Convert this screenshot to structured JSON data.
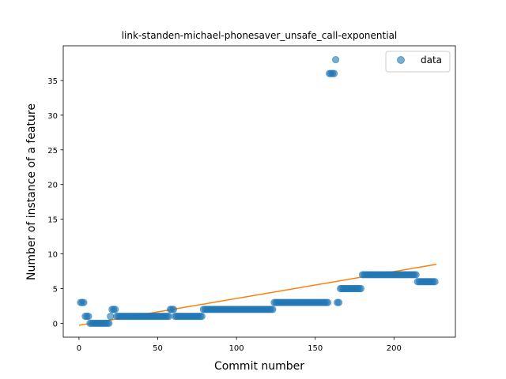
{
  "chart_data": {
    "type": "scatter",
    "title": "link-standen-michael-phonesaver_unsafe_call-exponential",
    "xlabel": "Commit number",
    "ylabel": "Number of instance of a feature",
    "xlim": [
      -10,
      239
    ],
    "ylim": [
      -2,
      40
    ],
    "xticks": [
      0,
      50,
      100,
      150,
      200
    ],
    "yticks": [
      0,
      5,
      10,
      15,
      20,
      25,
      30,
      35
    ],
    "grid": false,
    "legend": {
      "position": "top-right",
      "entries": [
        "data"
      ]
    },
    "colors": {
      "data": "#1f77b4",
      "fit": "#ff7f0e"
    },
    "series": [
      {
        "name": "data",
        "kind": "scatter",
        "segments": [
          {
            "x_start": 1,
            "x_end": 3,
            "y": 3
          },
          {
            "x_start": 4,
            "x_end": 6,
            "y": 1
          },
          {
            "x_start": 7,
            "x_end": 19,
            "y": 0
          },
          {
            "x_start": 20,
            "x_end": 20,
            "y": 1
          },
          {
            "x_start": 21,
            "x_end": 23,
            "y": 2
          },
          {
            "x_start": 24,
            "x_end": 57,
            "y": 1
          },
          {
            "x_start": 58,
            "x_end": 60,
            "y": 2
          },
          {
            "x_start": 61,
            "x_end": 78,
            "y": 1
          },
          {
            "x_start": 79,
            "x_end": 123,
            "y": 2
          },
          {
            "x_start": 124,
            "x_end": 158,
            "y": 3
          },
          {
            "x_start": 159,
            "x_end": 162,
            "y": 36
          },
          {
            "x_start": 163,
            "x_end": 163,
            "y": 38
          },
          {
            "x_start": 164,
            "x_end": 165,
            "y": 3
          },
          {
            "x_start": 166,
            "x_end": 179,
            "y": 5
          },
          {
            "x_start": 180,
            "x_end": 214,
            "y": 7
          },
          {
            "x_start": 215,
            "x_end": 226,
            "y": 6
          }
        ]
      },
      {
        "name": "",
        "kind": "line",
        "x": [
          0,
          227
        ],
        "y": [
          -0.3,
          8.5
        ]
      }
    ]
  }
}
